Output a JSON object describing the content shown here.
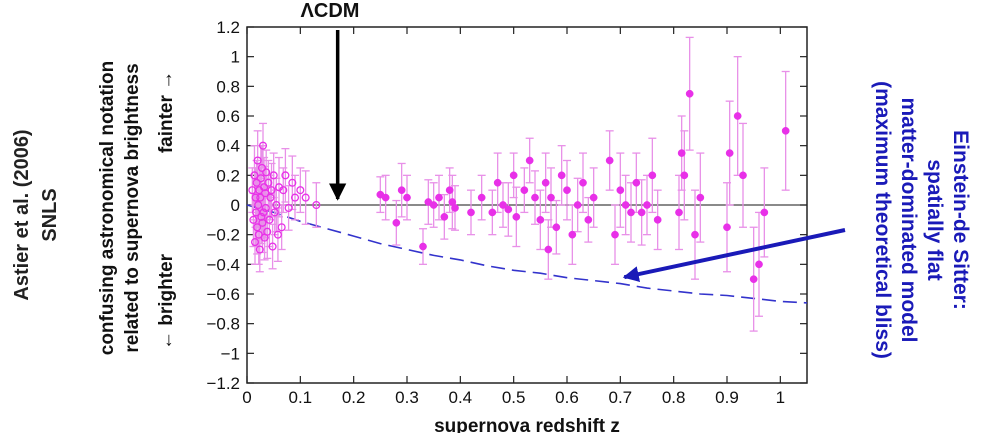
{
  "chart_data": {
    "type": "scatter",
    "title": "",
    "xlabel": "supernova redshift z",
    "ylabel_lines": [
      "confusing astronomical notation",
      "related to supernova brightness"
    ],
    "fainter_label": "fainter →",
    "brighter_label": "← brighter",
    "source_lines": [
      "Astier et al. (2006)",
      "SNLS"
    ],
    "xlim": [
      0,
      1.05
    ],
    "ylim": [
      -1.2,
      1.2
    ],
    "x_ticks": [
      0,
      0.1,
      0.2,
      0.3,
      0.4,
      0.5,
      0.6,
      0.7,
      0.8,
      0.9,
      1
    ],
    "x_tick_labels": [
      "0",
      "0.1",
      "0.2",
      "0.3",
      "0.4",
      "0.5",
      "0.6",
      "0.7",
      "0.8",
      "0.9",
      "1"
    ],
    "y_ticks": [
      -1.2,
      -1,
      -0.8,
      -0.6,
      -0.4,
      -0.2,
      0,
      0.2,
      0.4,
      0.6,
      0.8,
      1,
      1.2
    ],
    "y_tick_labels": [
      "−1.2",
      "−1",
      "−0.8",
      "−0.6",
      "−0.4",
      "−0.2",
      "0",
      "0.2",
      "0.4",
      "0.6",
      "0.8",
      "1",
      "1.2"
    ],
    "lcdm_label": "ΛCDM",
    "eds_label_lines": [
      "Einstein-de Sitter:",
      "spatially flat",
      "matter-dominated model",
      "(maximum theoretical bliss)"
    ],
    "colors": {
      "points": "#e830e8",
      "errorbars": "#e890e8",
      "eds_curve": "#3333cc",
      "arrow_blue": "#1a1ab8",
      "arrow_black": "#000000"
    },
    "series": [
      {
        "marker": "open-circle",
        "points": [
          [
            0.01,
            0.1,
            0.15
          ],
          [
            0.012,
            -0.1,
            0.18
          ],
          [
            0.014,
            0.2,
            0.2
          ],
          [
            0.015,
            -0.25,
            0.15
          ],
          [
            0.016,
            0.05,
            0.2
          ],
          [
            0.017,
            -0.05,
            0.22
          ],
          [
            0.018,
            0.15,
            0.15
          ],
          [
            0.019,
            -0.15,
            0.18
          ],
          [
            0.02,
            0.3,
            0.2
          ],
          [
            0.021,
            0.0,
            0.15
          ],
          [
            0.022,
            -0.2,
            0.2
          ],
          [
            0.023,
            0.1,
            0.18
          ],
          [
            0.024,
            -0.3,
            0.15
          ],
          [
            0.025,
            0.05,
            0.2
          ],
          [
            0.026,
            0.18,
            0.22
          ],
          [
            0.027,
            -0.08,
            0.18
          ],
          [
            0.028,
            0.25,
            0.15
          ],
          [
            0.029,
            -0.12,
            0.2
          ],
          [
            0.03,
            0.4,
            0.15
          ],
          [
            0.031,
            -0.05,
            0.18
          ],
          [
            0.032,
            0.12,
            0.2
          ],
          [
            0.033,
            -0.22,
            0.15
          ],
          [
            0.034,
            0.08,
            0.18
          ],
          [
            0.035,
            -0.02,
            0.2
          ],
          [
            0.036,
            0.22,
            0.15
          ],
          [
            0.038,
            -0.18,
            0.18
          ],
          [
            0.04,
            0.15,
            0.15
          ],
          [
            0.042,
            -0.1,
            0.18
          ],
          [
            0.044,
            0.05,
            0.15
          ],
          [
            0.046,
            0.1,
            0.18
          ],
          [
            0.048,
            -0.28,
            0.15
          ],
          [
            0.05,
            0.2,
            0.15
          ],
          [
            0.052,
            -0.05,
            0.15
          ],
          [
            0.055,
            0.0,
            0.18
          ],
          [
            0.058,
            -0.2,
            0.18
          ],
          [
            0.06,
            0.12,
            0.2
          ],
          [
            0.065,
            -0.15,
            0.15
          ],
          [
            0.068,
            0.1,
            0.15
          ],
          [
            0.072,
            0.2,
            0.18
          ],
          [
            0.078,
            -0.02,
            0.15
          ],
          [
            0.085,
            0.15,
            0.18
          ],
          [
            0.09,
            0.05,
            0.15
          ],
          [
            0.1,
            0.1,
            0.15
          ],
          [
            0.11,
            0.05,
            0.18
          ],
          [
            0.13,
            0.0,
            0.15
          ]
        ]
      },
      {
        "marker": "filled-circle",
        "points": [
          [
            0.25,
            0.07,
            0.12
          ],
          [
            0.26,
            0.05,
            0.15
          ],
          [
            0.28,
            -0.12,
            0.15
          ],
          [
            0.29,
            0.1,
            0.18
          ],
          [
            0.3,
            0.05,
            0.15
          ],
          [
            0.33,
            -0.28,
            0.12
          ],
          [
            0.34,
            0.02,
            0.15
          ],
          [
            0.35,
            0.0,
            0.15
          ],
          [
            0.36,
            0.05,
            0.15
          ],
          [
            0.37,
            -0.08,
            0.15
          ],
          [
            0.38,
            0.1,
            0.15
          ],
          [
            0.385,
            0.02,
            0.18
          ],
          [
            0.39,
            -0.02,
            0.15
          ],
          [
            0.42,
            -0.05,
            0.15
          ],
          [
            0.44,
            0.05,
            0.15
          ],
          [
            0.46,
            -0.05,
            0.15
          ],
          [
            0.47,
            0.15,
            0.2
          ],
          [
            0.48,
            0.0,
            0.15
          ],
          [
            0.49,
            -0.03,
            0.18
          ],
          [
            0.5,
            0.2,
            0.15
          ],
          [
            0.505,
            -0.08,
            0.2
          ],
          [
            0.52,
            0.1,
            0.15
          ],
          [
            0.53,
            0.3,
            0.15
          ],
          [
            0.54,
            0.05,
            0.18
          ],
          [
            0.55,
            -0.1,
            0.2
          ],
          [
            0.56,
            0.15,
            0.2
          ],
          [
            0.565,
            -0.3,
            0.2
          ],
          [
            0.57,
            0.05,
            0.2
          ],
          [
            0.58,
            -0.15,
            0.18
          ],
          [
            0.59,
            0.2,
            0.2
          ],
          [
            0.6,
            0.1,
            0.2
          ],
          [
            0.61,
            -0.2,
            0.2
          ],
          [
            0.62,
            0.0,
            0.18
          ],
          [
            0.63,
            0.15,
            0.2
          ],
          [
            0.64,
            -0.1,
            0.15
          ],
          [
            0.65,
            0.05,
            0.2
          ],
          [
            0.68,
            0.3,
            0.2
          ],
          [
            0.69,
            -0.2,
            0.2
          ],
          [
            0.7,
            0.1,
            0.25
          ],
          [
            0.71,
            0.0,
            0.2
          ],
          [
            0.72,
            -0.05,
            0.2
          ],
          [
            0.73,
            0.15,
            0.2
          ],
          [
            0.74,
            -0.05,
            0.22
          ],
          [
            0.75,
            0.0,
            0.2
          ],
          [
            0.76,
            0.2,
            0.25
          ],
          [
            0.77,
            -0.1,
            0.2
          ],
          [
            0.81,
            -0.05,
            0.25
          ],
          [
            0.815,
            0.35,
            0.25
          ],
          [
            0.82,
            0.2,
            0.3
          ],
          [
            0.83,
            0.75,
            0.38
          ],
          [
            0.84,
            -0.2,
            0.3
          ],
          [
            0.85,
            0.05,
            0.3
          ],
          [
            0.9,
            -0.15,
            0.3
          ],
          [
            0.905,
            0.35,
            0.35
          ],
          [
            0.92,
            0.6,
            0.4
          ],
          [
            0.93,
            0.2,
            0.35
          ],
          [
            0.95,
            -0.5,
            0.35
          ],
          [
            0.96,
            -0.4,
            0.35
          ],
          [
            0.97,
            -0.05,
            0.3
          ],
          [
            1.01,
            0.5,
            0.4
          ]
        ]
      }
    ],
    "eds_curve": {
      "x": [
        0,
        0.05,
        0.1,
        0.15,
        0.2,
        0.25,
        0.3,
        0.35,
        0.4,
        0.45,
        0.5,
        0.55,
        0.6,
        0.65,
        0.7,
        0.75,
        0.8,
        0.85,
        0.9,
        0.95,
        1.0,
        1.05
      ],
      "y": [
        0,
        -0.05,
        -0.11,
        -0.16,
        -0.21,
        -0.26,
        -0.3,
        -0.34,
        -0.37,
        -0.41,
        -0.44,
        -0.46,
        -0.49,
        -0.51,
        -0.53,
        -0.56,
        -0.58,
        -0.6,
        -0.61,
        -0.63,
        -0.65,
        -0.66
      ]
    },
    "annotations": {
      "lcdm_arrow_target": [
        0.17,
        0.0
      ],
      "eds_arrow_target": [
        0.7,
        -0.5
      ]
    }
  }
}
